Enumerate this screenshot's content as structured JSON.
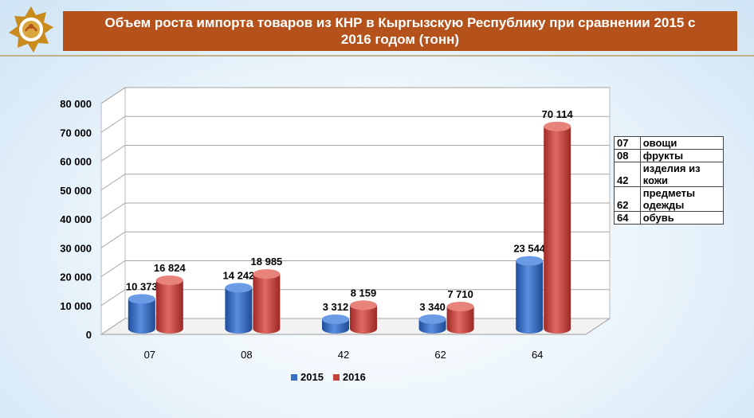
{
  "title": "Объем роста импорта товаров из КНР в Кыргызскую Республику  при сравнении 2015  с 2016 годом (тонн)",
  "logo_icon": "emblem-icon",
  "colors": {
    "title_bg": "#b5521b",
    "series_2015": "#3a6fc4",
    "series_2016": "#c8403c"
  },
  "chart_data": {
    "type": "bar",
    "categories": [
      "07",
      "08",
      "42",
      "62",
      "64"
    ],
    "series": [
      {
        "name": "2015",
        "values": [
          10373,
          14242,
          3312,
          3340,
          23544
        ],
        "labels": [
          "10 373",
          "14 242",
          "3 312",
          "3 340",
          "23 544"
        ]
      },
      {
        "name": "2016",
        "values": [
          16824,
          18985,
          8159,
          7710,
          70114
        ],
        "labels": [
          "16 824",
          "18 985",
          "8 159",
          "7 710",
          "70 114"
        ]
      }
    ],
    "yticks": [
      "0",
      "10 000",
      "20 000",
      "30 000",
      "40 000",
      "50 000",
      "60 000",
      "70 000",
      "80 000"
    ],
    "ylim": [
      0,
      80000
    ],
    "grid": true,
    "legend_position": "bottom"
  },
  "code_table": [
    {
      "code": "07",
      "name": "овощи"
    },
    {
      "code": "08",
      "name": "фрукты"
    },
    {
      "code": "42",
      "name": "изделия из кожи"
    },
    {
      "code": "62",
      "name": "предметы одежды"
    },
    {
      "code": "64",
      "name": "обувь"
    }
  ]
}
